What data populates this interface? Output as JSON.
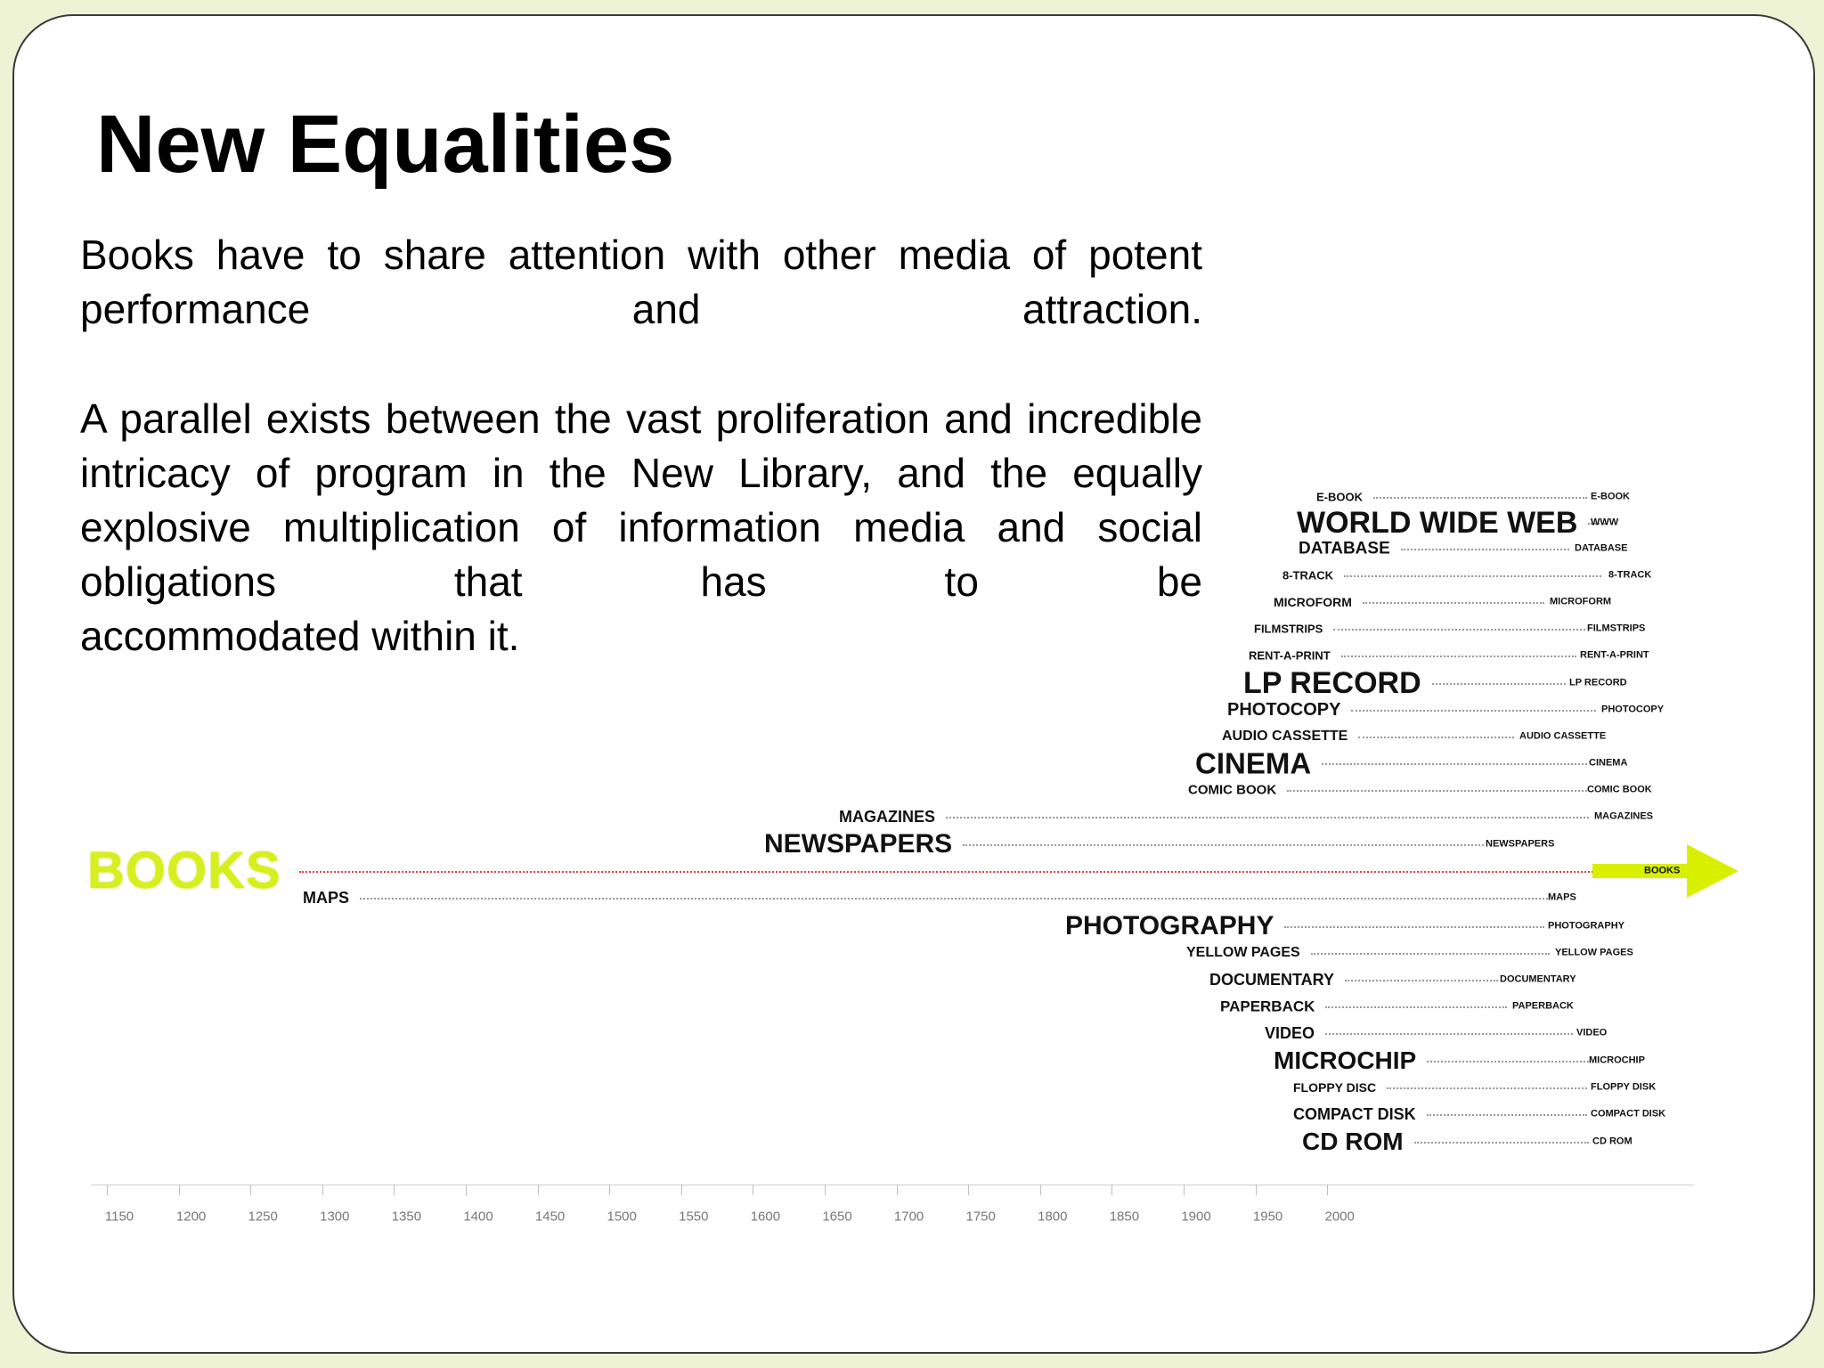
{
  "slide": {
    "title": "New Equalities",
    "paragraph1": "Books have to share attention with other media of potent performance and attraction.",
    "paragraph2_main": "A parallel exists between the vast proliferation and incredible intricacy of program in the New Library, and the equally explosive multiplication of information media and social obligations that has to be",
    "paragraph2_last": "accommodated within it."
  },
  "timeline": {
    "books_label": "BOOKS",
    "books_end_label": "BOOKS",
    "accent_color": "#d8f000",
    "media_above": [
      {
        "label": "E-BOOK",
        "end": "E-BOOK"
      },
      {
        "label": "WORLD WIDE WEB",
        "end": "WWW"
      },
      {
        "label": "DATABASE",
        "end": "DATABASE"
      },
      {
        "label": "8-TRACK",
        "end": "8-TRACK"
      },
      {
        "label": "MICROFORM",
        "end": "MICROFORM"
      },
      {
        "label": "FILMSTRIPS",
        "end": "FILMSTRIPS"
      },
      {
        "label": "RENT-A-PRINT",
        "end": "RENT-A-PRINT"
      },
      {
        "label": "LP RECORD",
        "end": "LP RECORD"
      },
      {
        "label": "PHOTOCOPY",
        "end": "PHOTOCOPY"
      },
      {
        "label": "AUDIO CASSETTE",
        "end": "AUDIO CASSETTE"
      },
      {
        "label": "CINEMA",
        "end": "CINEMA"
      },
      {
        "label": "COMIC BOOK",
        "end": "COMIC BOOK"
      },
      {
        "label": "MAGAZINES",
        "end": "MAGAZINES"
      },
      {
        "label": "NEWSPAPERS",
        "end": "NEWSPAPERS"
      }
    ],
    "media_below": [
      {
        "label": "MAPS",
        "end": "MAPS"
      },
      {
        "label": "PHOTOGRAPHY",
        "end": "PHOTOGRAPHY"
      },
      {
        "label": "YELLOW PAGES",
        "end": "YELLOW PAGES"
      },
      {
        "label": "DOCUMENTARY",
        "end": "DOCUMENTARY"
      },
      {
        "label": "PAPERBACK",
        "end": "PAPERBACK"
      },
      {
        "label": "VIDEO",
        "end": "VIDEO"
      },
      {
        "label": "MICROCHIP",
        "end": "MICROCHIP"
      },
      {
        "label": "FLOPPY DISC",
        "end": "FLOPPY DISK"
      },
      {
        "label": "COMPACT DISK",
        "end": "COMPACT DISK"
      },
      {
        "label": "CD ROM",
        "end": "CD ROM"
      }
    ],
    "years": [
      "1150",
      "1200",
      "1250",
      "1300",
      "1350",
      "1400",
      "1450",
      "1500",
      "1550",
      "1600",
      "1650",
      "1700",
      "1750",
      "1800",
      "1850",
      "1900",
      "1950",
      "2000"
    ]
  }
}
